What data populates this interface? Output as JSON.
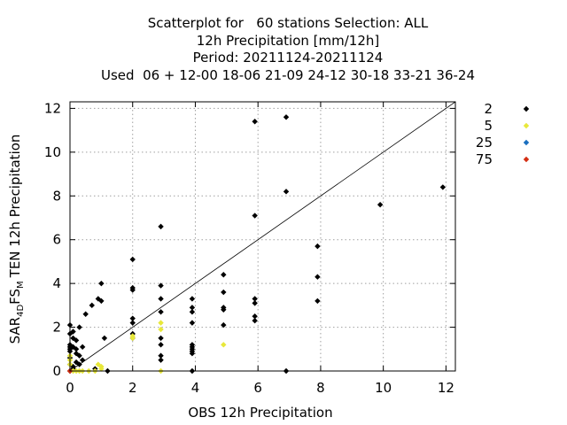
{
  "chart_data": {
    "type": "scatter",
    "title_lines": [
      "Scatterplot for   60 stations Selection: ALL",
      "12h Precipitation [mm/12h]",
      "Period: 20211124-20211124",
      "Used  06 + 12-00 18-06 21-09 24-12 30-18 33-21 36-24"
    ],
    "xlabel": "OBS 12h Precipitation",
    "ylabel_parts": {
      "base": "SAR",
      "sub1": "4D",
      "mid": "FS",
      "sub2": "M",
      "end": "TEN 12h Precipitation"
    },
    "xlim": [
      0,
      12.3
    ],
    "ylim": [
      0,
      12.3
    ],
    "x_ticks": [
      0,
      2,
      4,
      6,
      8,
      10,
      12
    ],
    "y_ticks": [
      0,
      2,
      4,
      6,
      8,
      10,
      12
    ],
    "grid": true,
    "diagonal": true,
    "legend_position": "right",
    "series": [
      {
        "name": "2",
        "color": "#000000",
        "points": [
          [
            0,
            0
          ],
          [
            0,
            0.3
          ],
          [
            0,
            0.6
          ],
          [
            0,
            0.9
          ],
          [
            0,
            1.1
          ],
          [
            0,
            1.2
          ],
          [
            0,
            1.7
          ],
          [
            0,
            2.1
          ],
          [
            0,
            1.0
          ],
          [
            0.1,
            0.1
          ],
          [
            0.1,
            0.2
          ],
          [
            0.1,
            1.1
          ],
          [
            0.1,
            1.5
          ],
          [
            0.1,
            1.8
          ],
          [
            0.2,
            0.4
          ],
          [
            0.2,
            0.8
          ],
          [
            0.2,
            1.0
          ],
          [
            0.2,
            1.4
          ],
          [
            0.3,
            0.3
          ],
          [
            0.3,
            0.7
          ],
          [
            0.3,
            2.0
          ],
          [
            0.4,
            0.5
          ],
          [
            0.4,
            1.1
          ],
          [
            0.5,
            2.6
          ],
          [
            0.7,
            3.0
          ],
          [
            0.8,
            0.1
          ],
          [
            0.9,
            3.3
          ],
          [
            1.0,
            4.0
          ],
          [
            1.1,
            1.5
          ],
          [
            1.0,
            3.2
          ],
          [
            1.2,
            0.0
          ],
          [
            2.0,
            1.5
          ],
          [
            2.0,
            1.7
          ],
          [
            2.0,
            2.2
          ],
          [
            2.0,
            2.4
          ],
          [
            2.0,
            3.7
          ],
          [
            2.0,
            3.8
          ],
          [
            2.0,
            5.1
          ],
          [
            2.9,
            0.5
          ],
          [
            2.9,
            0.7
          ],
          [
            2.9,
            1.2
          ],
          [
            2.9,
            1.5
          ],
          [
            2.9,
            2.7
          ],
          [
            2.9,
            3.3
          ],
          [
            2.9,
            3.9
          ],
          [
            2.9,
            6.6
          ],
          [
            3.9,
            0.0
          ],
          [
            3.9,
            0.8
          ],
          [
            3.9,
            0.9
          ],
          [
            3.9,
            1.0
          ],
          [
            3.9,
            1.1
          ],
          [
            3.9,
            1.2
          ],
          [
            3.9,
            2.2
          ],
          [
            3.9,
            2.7
          ],
          [
            3.9,
            2.9
          ],
          [
            3.9,
            3.3
          ],
          [
            4.9,
            2.1
          ],
          [
            4.9,
            2.8
          ],
          [
            4.9,
            2.9
          ],
          [
            4.9,
            3.6
          ],
          [
            4.9,
            4.4
          ],
          [
            5.9,
            2.3
          ],
          [
            5.9,
            2.5
          ],
          [
            5.9,
            3.1
          ],
          [
            5.9,
            3.3
          ],
          [
            5.9,
            7.1
          ],
          [
            5.9,
            11.4
          ],
          [
            6.9,
            0.0
          ],
          [
            6.9,
            8.2
          ],
          [
            6.9,
            11.6
          ],
          [
            7.9,
            3.2
          ],
          [
            7.9,
            4.3
          ],
          [
            7.9,
            5.7
          ],
          [
            9.9,
            7.6
          ],
          [
            11.9,
            8.4
          ]
        ]
      },
      {
        "name": "5",
        "color": "#e8e83a",
        "points": [
          [
            0,
            0.3
          ],
          [
            0,
            0.5
          ],
          [
            0,
            0.7
          ],
          [
            0.1,
            0.0
          ],
          [
            0.2,
            0.0
          ],
          [
            0.3,
            0.0
          ],
          [
            0.4,
            0.0
          ],
          [
            0.6,
            0.0
          ],
          [
            0.8,
            0.0
          ],
          [
            0.9,
            0.3
          ],
          [
            1.0,
            0.2
          ],
          [
            1.0,
            0.1
          ],
          [
            2.0,
            1.5
          ],
          [
            2.0,
            1.6
          ],
          [
            2.9,
            0.0
          ],
          [
            2.9,
            1.9
          ],
          [
            2.9,
            2.2
          ],
          [
            4.9,
            1.2
          ]
        ]
      },
      {
        "name": "25",
        "color": "#1a6fbf",
        "points": []
      },
      {
        "name": "75",
        "color": "#d42e12",
        "points": [
          [
            0,
            0
          ]
        ]
      }
    ]
  }
}
